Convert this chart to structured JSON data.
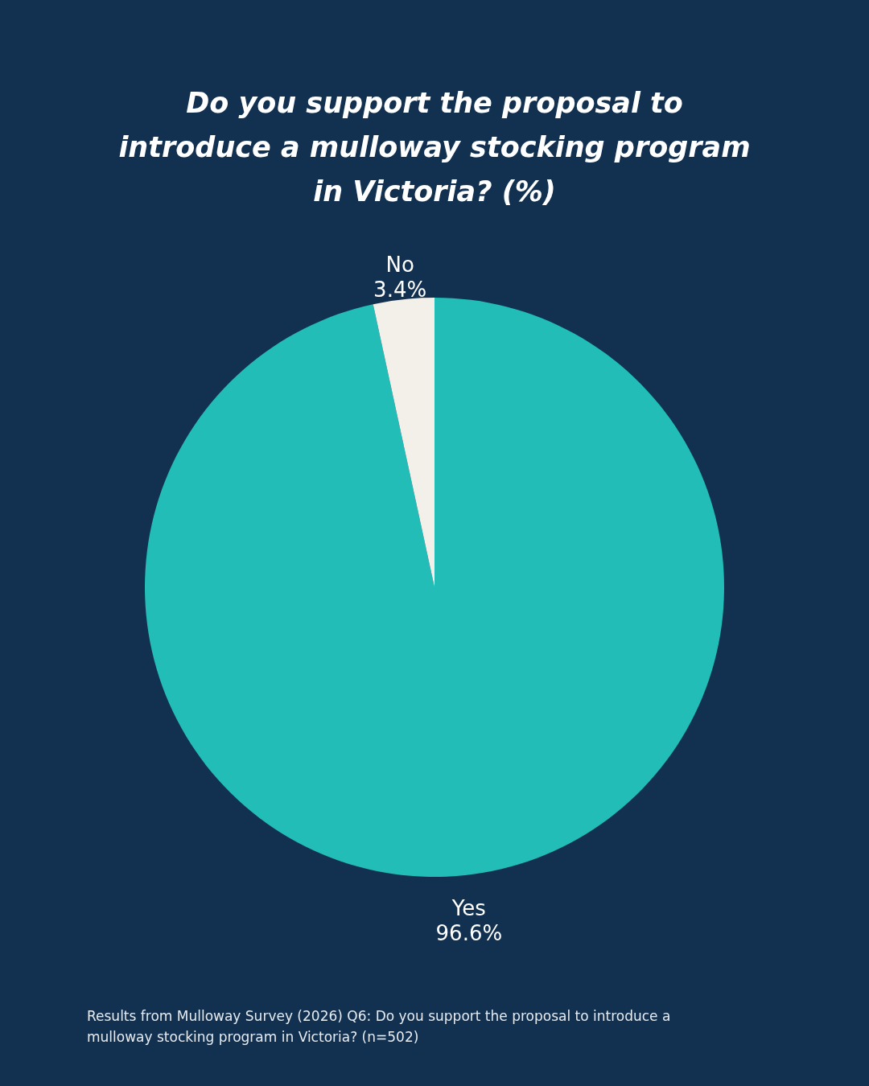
{
  "chart_data": {
    "type": "pie",
    "title": "Do you support the proposal to introduce a mulloway stocking program in Victoria? (%)",
    "categories": [
      "Yes",
      "No"
    ],
    "values": [
      96.6,
      3.4
    ],
    "value_labels": [
      "96.6%",
      "3.4%"
    ],
    "colors": [
      "#22bdb7",
      "#f3efe9"
    ],
    "annotations": [
      "Results from Mulloway Survey (2026) Q6: Do you support the proposal to introduce a mulloway stocking program in Victoria? (n=502)"
    ]
  }
}
